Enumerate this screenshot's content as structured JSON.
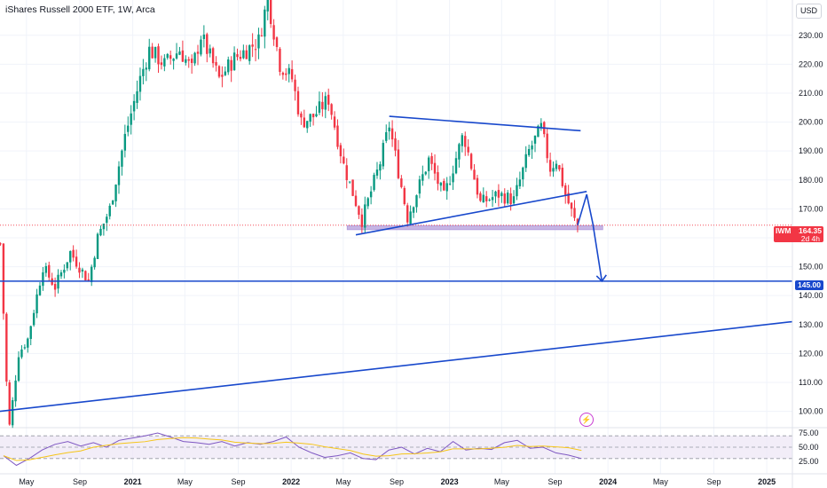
{
  "header": {
    "title": "iShares Russell 2000 ETF, 1W, Arca",
    "currency": "USD"
  },
  "price_axis": {
    "ticks": [
      "230.00",
      "220.00",
      "210.00",
      "200.00",
      "190.00",
      "180.00",
      "170.00",
      "160.00",
      "150.00",
      "140.00",
      "130.00",
      "120.00",
      "110.00",
      "100.00"
    ]
  },
  "rsi_axis": {
    "ticks": [
      "75.00",
      "50.00",
      "25.00"
    ]
  },
  "time_axis": {
    "labels": [
      "May",
      "Sep",
      "2021",
      "May",
      "Sep",
      "2022",
      "May",
      "Sep",
      "2023",
      "May",
      "Sep",
      "2024",
      "May",
      "Sep",
      "2025"
    ]
  },
  "last_price": {
    "symbol": "IWM",
    "value": "164.35",
    "countdown": "2d 4h",
    "color": "#f23645"
  },
  "level_label": {
    "value": "145.00",
    "color": "#1848cc"
  },
  "colors": {
    "up": "#089981",
    "down": "#f23645",
    "trendline": "#1848cc",
    "support_zone": "#b39ddb",
    "rsi_line": "#7e57c2",
    "rsi_ma": "#f5c518"
  },
  "icons": {
    "alert": "lightning-icon"
  },
  "chart_data": {
    "type": "candlestick",
    "title": "iShares Russell 2000 ETF, 1W, Arca",
    "x_range": [
      "2020-03",
      "2025-03"
    ],
    "ylim": [
      95,
      240
    ],
    "grid": true,
    "key_prices": {
      "last": 164.35,
      "support": 145.0,
      "zone": [
        163,
        164
      ],
      "high": 243,
      "low": 95
    },
    "price_path": [
      [
        "2020-03-02",
        158
      ],
      [
        "2020-03-16",
        110
      ],
      [
        "2020-03-23",
        95
      ],
      [
        "2020-04-13",
        120
      ],
      [
        "2020-05-04",
        125
      ],
      [
        "2020-06-08",
        150
      ],
      [
        "2020-07-06",
        143
      ],
      [
        "2020-08-10",
        155
      ],
      [
        "2020-09-21",
        145
      ],
      [
        "2020-10-12",
        160
      ],
      [
        "2020-11-09",
        170
      ],
      [
        "2020-12-14",
        195
      ],
      [
        "2021-01-18",
        215
      ],
      [
        "2021-02-08",
        225
      ],
      [
        "2021-03-15",
        220
      ],
      [
        "2021-04-19",
        225
      ],
      [
        "2021-05-17",
        218
      ],
      [
        "2021-06-07",
        230
      ],
      [
        "2021-07-19",
        215
      ],
      [
        "2021-08-23",
        222
      ],
      [
        "2021-09-20",
        225
      ],
      [
        "2021-10-18",
        228
      ],
      [
        "2021-11-08",
        243
      ],
      [
        "2021-12-06",
        220
      ],
      [
        "2022-01-03",
        215
      ],
      [
        "2022-01-24",
        200
      ],
      [
        "2022-02-21",
        202
      ],
      [
        "2022-03-28",
        208
      ],
      [
        "2022-05-02",
        185
      ],
      [
        "2022-06-13",
        166
      ],
      [
        "2022-07-25",
        186
      ],
      [
        "2022-08-15",
        199
      ],
      [
        "2022-09-26",
        167
      ],
      [
        "2022-11-14",
        187
      ],
      [
        "2022-12-19",
        174
      ],
      [
        "2023-02-02",
        196
      ],
      [
        "2023-03-13",
        172
      ],
      [
        "2023-04-24",
        175
      ],
      [
        "2023-05-29",
        173
      ],
      [
        "2023-07-03",
        190
      ],
      [
        "2023-07-31",
        198
      ],
      [
        "2023-08-21",
        184
      ],
      [
        "2023-09-04",
        187
      ],
      [
        "2023-09-25",
        175
      ],
      [
        "2023-10-16",
        166
      ],
      [
        "2023-10-23",
        164.35
      ]
    ],
    "drawn_lines": [
      {
        "name": "upper trendline",
        "from": [
          "2022-08-15",
          202
        ],
        "to": [
          "2023-10-30",
          197
        ]
      },
      {
        "name": "lower trendline",
        "from": [
          "2022-05-30",
          161
        ],
        "to": [
          "2023-11-13",
          176
        ]
      },
      {
        "name": "support level",
        "y": 145.0
      },
      {
        "name": "long-term trendline",
        "from": [
          "2020-03-01",
          100
        ],
        "to": [
          "2025-03-01",
          131
        ]
      }
    ],
    "projection_path": [
      [
        "2023-10-23",
        164.35
      ],
      [
        "2023-11-13",
        175
      ],
      [
        "2023-11-27",
        165
      ],
      [
        "2023-12-18",
        145
      ]
    ],
    "rsi": {
      "levels": [
        70,
        50,
        30
      ],
      "ticks": [
        75,
        50,
        25
      ],
      "values": [
        35,
        18,
        30,
        45,
        55,
        60,
        52,
        58,
        50,
        62,
        66,
        70,
        75,
        68,
        60,
        58,
        55,
        60,
        52,
        58,
        55,
        60,
        68,
        50,
        40,
        32,
        35,
        40,
        30,
        28,
        45,
        50,
        38,
        48,
        42,
        60,
        45,
        48,
        46,
        58,
        62,
        48,
        50,
        40,
        36,
        30
      ]
    },
    "time_labels": [
      "May",
      "Sep",
      "2021",
      "May",
      "Sep",
      "2022",
      "May",
      "Sep",
      "2023",
      "May",
      "Sep",
      "2024",
      "May",
      "Sep",
      "2025"
    ]
  }
}
